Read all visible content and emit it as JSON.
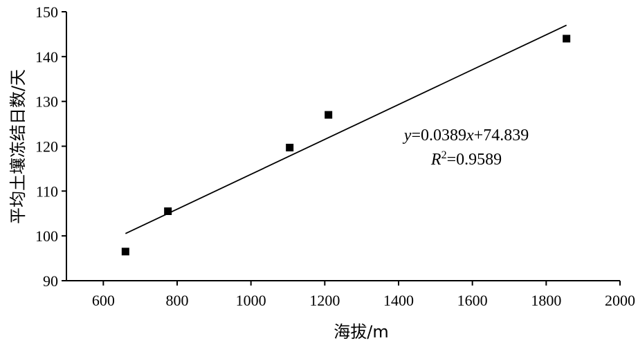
{
  "chart_data": {
    "type": "scatter",
    "xlabel": "海拔/m",
    "ylabel": "平均土壤冻结日数/天",
    "xlim": [
      500,
      2000
    ],
    "ylim": [
      90,
      150
    ],
    "xticks": [
      600,
      800,
      1000,
      1200,
      1400,
      1600,
      1800,
      2000
    ],
    "yticks": [
      90,
      100,
      110,
      120,
      130,
      140,
      150
    ],
    "xtick_labels": [
      "600",
      "800",
      "1000",
      "1200",
      "1400",
      "1600",
      "1800",
      "2000"
    ],
    "ytick_labels": [
      "90",
      "100",
      "110",
      "120",
      "130",
      "140",
      "150"
    ],
    "grid": false,
    "series": [
      {
        "points": [
          {
            "x": 660,
            "y": 96.5
          },
          {
            "x": 775,
            "y": 105.5
          },
          {
            "x": 1105,
            "y": 119.7
          },
          {
            "x": 1210,
            "y": 127
          },
          {
            "x": 1855,
            "y": 144
          }
        ]
      }
    ],
    "trendline": {
      "slope": 0.0389,
      "intercept": 74.839,
      "x_range": [
        660,
        1855
      ],
      "equation_parts": {
        "y_var": "y",
        "eq_mid": "=0.0389",
        "x_var": "x",
        "eq_tail": "+74.839"
      },
      "r2_parts": {
        "r_var": "R",
        "exp": "2",
        "value": "=0.9589"
      }
    }
  }
}
